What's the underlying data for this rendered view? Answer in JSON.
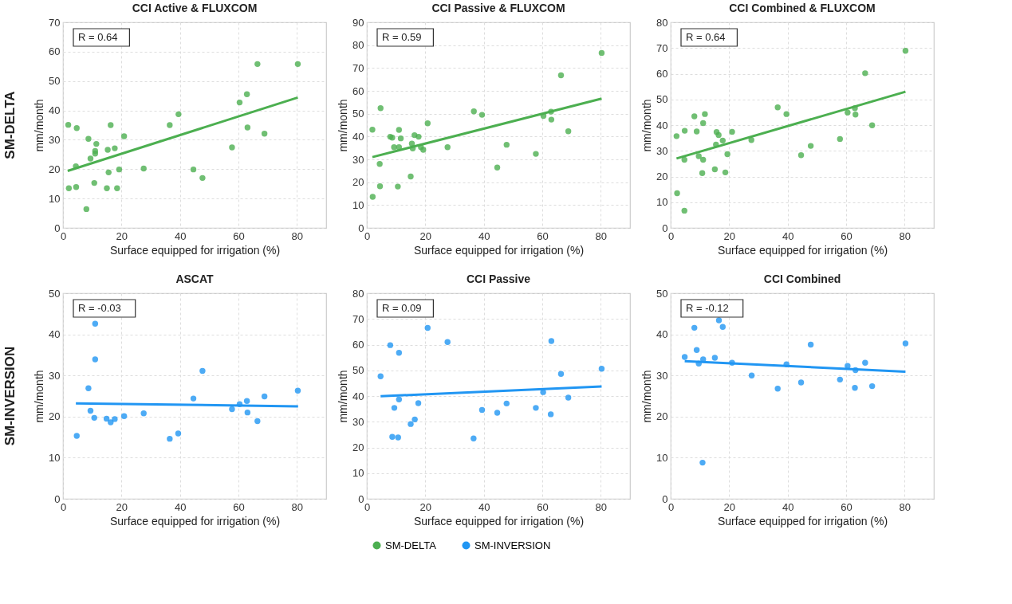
{
  "chart_data": [
    {
      "type": "scatter",
      "title": "CCI Active & FLUXCOM",
      "xlabel": "Surface equipped for irrigation (%)",
      "ylabel": "mm/month",
      "xlim": [
        0,
        90
      ],
      "xticks": [
        0,
        20,
        40,
        60,
        80
      ],
      "ylim": [
        0,
        70
      ],
      "yticks": [
        0,
        10,
        20,
        30,
        40,
        50,
        60,
        70
      ],
      "grid": true,
      "marker": "circle",
      "annotations": [
        "R = 0.64",
        "SM-DELTA"
      ],
      "series": [
        {
          "color": "#4caf50",
          "x": [
            1.8,
            4.7,
            4.4,
            2.0,
            4.5,
            8.0,
            8.7,
            9.4,
            11.0,
            11.0,
            11.4,
            10.7,
            15.3,
            15.0,
            15.6,
            16.3,
            17.7,
            18.5,
            19.2,
            20.9,
            27.6,
            36.5,
            39.5,
            44.6,
            47.7,
            57.8,
            60.4,
            62.9,
            63.1,
            66.5,
            68.9,
            80.3
          ],
          "values": [
            35.1,
            34.0,
            21.0,
            13.5,
            13.9,
            6.4,
            30.3,
            23.6,
            26.2,
            25.3,
            28.6,
            15.3,
            26.6,
            13.5,
            18.9,
            35.0,
            27.1,
            13.5,
            19.9,
            31.2,
            20.2,
            35.0,
            38.7,
            19.9,
            17.0,
            27.4,
            42.7,
            45.5,
            34.2,
            55.8,
            32.1,
            55.8
          ]
        },
        {
          "type": "line",
          "marker": "none",
          "color": "#4caf50",
          "x": [
            1.6,
            80.3
          ],
          "values": [
            19.4,
            44.4
          ]
        }
      ]
    },
    {
      "type": "scatter",
      "title": "CCI Passive & FLUXCOM",
      "xlabel": "Surface equipped for irrigation (%)",
      "ylabel": "mm/month",
      "xlim": [
        0,
        90
      ],
      "xticks": [
        0,
        20,
        40,
        60,
        80
      ],
      "ylim": [
        0,
        90
      ],
      "yticks": [
        0,
        10,
        20,
        30,
        40,
        50,
        60,
        70,
        80,
        90
      ],
      "grid": true,
      "marker": "circle",
      "legend": "bottom",
      "annotations": [
        "R = 0.59"
      ],
      "series": [
        {
          "name": "SM-DELTA",
          "color": "#4caf50",
          "x": [
            1.9,
            2.0,
            4.7,
            4.4,
            4.5,
            8.0,
            8.7,
            9.3,
            11.0,
            11.6,
            11.0,
            10.6,
            15.0,
            15.4,
            15.7,
            16.3,
            17.7,
            18.5,
            19.3,
            20.8,
            27.6,
            36.6,
            39.4,
            44.6,
            47.8,
            57.8,
            60.4,
            63.0,
            63.1,
            66.4,
            68.9,
            80.3
          ],
          "values": [
            43.0,
            13.6,
            52.4,
            28.0,
            18.2,
            39.9,
            39.5,
            35.3,
            42.9,
            39.2,
            35.3,
            18.1,
            22.5,
            36.9,
            34.8,
            40.6,
            39.9,
            35.3,
            34.2,
            45.8,
            35.3,
            51.0,
            49.5,
            26.4,
            36.4,
            32.4,
            49.0,
            50.9,
            47.4,
            66.8,
            42.3,
            76.6
          ]
        },
        {
          "type": "line",
          "marker": "none",
          "color": "#4caf50",
          "x": [
            1.9,
            80.3
          ],
          "values": [
            31.0,
            56.6
          ]
        }
      ]
    },
    {
      "type": "scatter",
      "title": "CCI Combined & FLUXCOM",
      "xlabel": "Surface equipped for irrigation (%)",
      "ylabel": "mm/month",
      "xlim": [
        0,
        90
      ],
      "xticks": [
        0,
        20,
        40,
        60,
        80
      ],
      "ylim": [
        0,
        80
      ],
      "yticks": [
        0,
        10,
        20,
        30,
        40,
        50,
        60,
        70,
        80
      ],
      "grid": true,
      "marker": "circle",
      "annotations": [
        "R = 0.64"
      ],
      "series": [
        {
          "color": "#4caf50",
          "x": [
            2.0,
            2.2,
            4.8,
            4.7,
            4.7,
            8.1,
            8.9,
            9.6,
            11.1,
            11.7,
            11.1,
            10.8,
            15.1,
            15.5,
            15.7,
            16.4,
            17.8,
            18.7,
            19.4,
            21.0,
            27.6,
            36.6,
            39.6,
            44.6,
            47.9,
            57.9,
            60.5,
            63.0,
            63.2,
            66.5,
            68.9,
            80.3
          ],
          "values": [
            35.7,
            13.5,
            37.8,
            26.5,
            6.7,
            43.4,
            37.5,
            27.9,
            40.8,
            44.3,
            26.5,
            21.3,
            22.8,
            32.4,
            37.3,
            36.1,
            34.0,
            21.6,
            28.7,
            37.4,
            34.2,
            46.9,
            44.3,
            28.3,
            31.9,
            34.6,
            44.9,
            46.6,
            44.1,
            60.2,
            39.9,
            68.9
          ]
        },
        {
          "type": "line",
          "marker": "none",
          "color": "#4caf50",
          "x": [
            2.0,
            80.3
          ],
          "values": [
            27.0,
            53.0
          ]
        }
      ]
    },
    {
      "type": "scatter",
      "title": "ASCAT",
      "xlabel": "Surface equipped for irrigation (%)",
      "ylabel": "mm/month",
      "xlim": [
        0,
        90
      ],
      "xticks": [
        0,
        20,
        40,
        60,
        80
      ],
      "ylim": [
        0,
        50
      ],
      "yticks": [
        0,
        10,
        20,
        30,
        40,
        50
      ],
      "grid": true,
      "marker": "circle",
      "annotations": [
        "R = -0.03",
        "SM-INVERSION"
      ],
      "series": [
        {
          "color": "#2196f3",
          "x": [
            4.7,
            8.7,
            9.4,
            11.0,
            11.0,
            10.7,
            14.9,
            16.3,
            17.7,
            20.9,
            27.6,
            36.5,
            39.4,
            44.6,
            47.7,
            57.8,
            60.4,
            62.9,
            63.1,
            66.5,
            68.9,
            80.3
          ],
          "values": [
            15.3,
            26.9,
            21.4,
            42.6,
            33.9,
            19.7,
            19.5,
            18.6,
            19.4,
            20.1,
            20.8,
            14.6,
            15.9,
            24.4,
            31.1,
            21.8,
            23.0,
            23.8,
            21.0,
            18.9,
            24.9,
            26.3
          ]
        },
        {
          "type": "line",
          "marker": "none",
          "color": "#2196f3",
          "x": [
            4.4,
            80.4
          ],
          "values": [
            23.2,
            22.5
          ]
        }
      ]
    },
    {
      "type": "scatter",
      "title": "CCI Passive",
      "xlabel": "Surface equipped for irrigation (%)",
      "ylabel": "mm/month",
      "xlim": [
        0,
        90
      ],
      "xticks": [
        0,
        20,
        40,
        60,
        80
      ],
      "ylim": [
        0,
        80
      ],
      "yticks": [
        0,
        10,
        20,
        30,
        40,
        50,
        60,
        70,
        80
      ],
      "grid": true,
      "marker": "circle",
      "legend": "bottom",
      "annotations": [
        "R = 0.09"
      ],
      "series": [
        {
          "name": "SM-INVERSION",
          "color": "#2196f3",
          "x": [
            4.7,
            8.0,
            8.7,
            9.4,
            11.0,
            11.0,
            10.7,
            15.0,
            16.4,
            17.6,
            20.8,
            27.6,
            36.5,
            39.4,
            44.6,
            47.8,
            57.8,
            60.3,
            62.9,
            63.1,
            66.4,
            68.9,
            80.3
          ],
          "values": [
            47.7,
            59.8,
            24.1,
            35.4,
            56.8,
            38.7,
            23.9,
            29.1,
            30.9,
            37.2,
            66.5,
            61.0,
            23.5,
            34.6,
            33.5,
            37.1,
            35.4,
            41.5,
            32.9,
            61.4,
            48.6,
            39.4,
            50.6
          ]
        },
        {
          "type": "line",
          "marker": "none",
          "color": "#2196f3",
          "x": [
            4.7,
            80.3
          ],
          "values": [
            39.9,
            43.7
          ]
        }
      ]
    },
    {
      "type": "scatter",
      "title": "CCI Combined",
      "xlabel": "Surface equipped for irrigation (%)",
      "ylabel": "mm/month",
      "xlim": [
        0,
        90
      ],
      "xticks": [
        0,
        20,
        40,
        60,
        80
      ],
      "ylim": [
        0,
        50
      ],
      "yticks": [
        0,
        10,
        20,
        30,
        40,
        50
      ],
      "grid": true,
      "marker": "circle",
      "annotations": [
        "R = -0.12"
      ],
      "series": [
        {
          "color": "#2196f3",
          "x": [
            4.8,
            8.1,
            8.9,
            9.6,
            11.1,
            10.9,
            15.1,
            16.5,
            17.8,
            21.0,
            27.7,
            36.6,
            39.6,
            44.6,
            47.9,
            57.9,
            60.5,
            63.0,
            63.2,
            66.5,
            68.9,
            80.3
          ],
          "values": [
            34.5,
            41.6,
            36.2,
            32.9,
            33.9,
            8.8,
            34.3,
            43.4,
            41.8,
            33.1,
            30.0,
            26.8,
            32.7,
            28.3,
            37.5,
            29.0,
            32.3,
            27.0,
            31.3,
            33.1,
            27.4,
            37.8
          ]
        },
        {
          "type": "line",
          "marker": "none",
          "color": "#2196f3",
          "x": [
            4.8,
            80.3
          ],
          "values": [
            33.5,
            30.9
          ]
        }
      ]
    }
  ]
}
